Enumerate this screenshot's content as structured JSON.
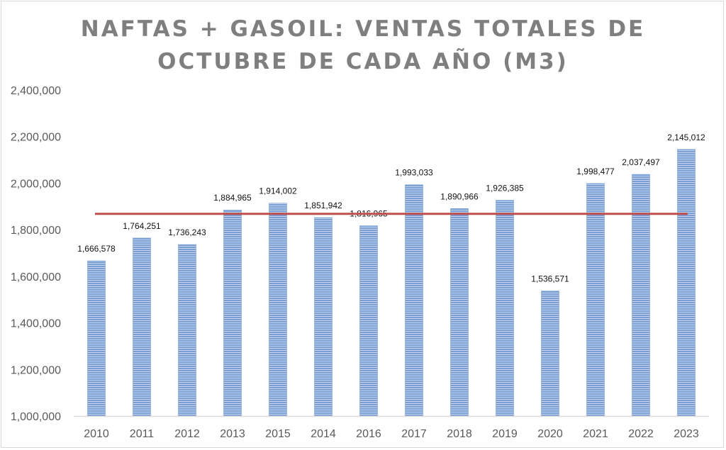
{
  "colors": {
    "bar_fill": "#7aa0d4",
    "bar_stripe": "#ffffff",
    "reference_line": "#c0504d",
    "axis": "#d9d9d9",
    "title": "#7f7f7f",
    "tick_text": "#595959"
  },
  "chart_data": {
    "type": "bar",
    "title_lines": [
      "NAFTAS + GASOIL: VENTAS TOTALES DE",
      "OCTUBRE DE CADA AÑO (M3)"
    ],
    "categories": [
      "2010",
      "2011",
      "2012",
      "2013",
      "2015",
      "2014",
      "2016",
      "2017",
      "2018",
      "2019",
      "2020",
      "2021",
      "2022",
      "2023"
    ],
    "values": [
      1666578,
      1764251,
      1736243,
      1884965,
      1914002,
      1851942,
      1816965,
      1993033,
      1890966,
      1926385,
      1536571,
      1998477,
      2037497,
      2145012
    ],
    "data_labels": [
      "1,666,578",
      "1,764,251",
      "1,736,243",
      "1,884,965",
      "1,914,002",
      "1,851,942",
      "1,816,965",
      "1,993,033",
      "1,890,966",
      "1,926,385",
      "1,536,571",
      "1,998,477",
      "2,037,497",
      "2,145,012"
    ],
    "ylim": [
      1000000,
      2400000
    ],
    "yticks": [
      1000000,
      1200000,
      1400000,
      1600000,
      1800000,
      2000000,
      2200000,
      2400000
    ],
    "ytick_labels": [
      "1,000,000",
      "1,200,000",
      "1,400,000",
      "1,600,000",
      "1,800,000",
      "2,000,000",
      "2,200,000",
      "2,400,000"
    ],
    "reference_line": 1868000,
    "grid": false,
    "legend": "none"
  }
}
